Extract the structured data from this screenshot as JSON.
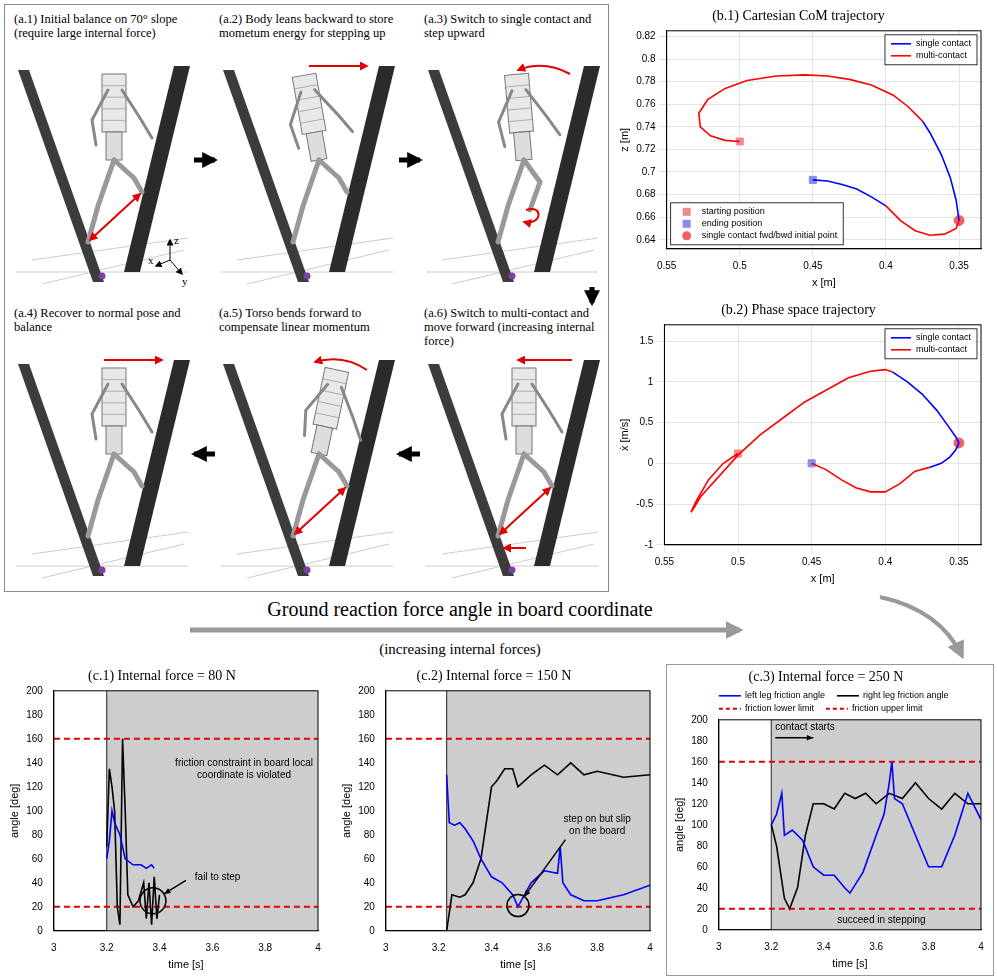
{
  "diagram": {
    "captions": [
      "(a.1) Initial balance on 70° slope (require large internal force)",
      "(a.2) Body leans backward to store mometum energy for stepping up",
      "(a.3) Switch to single contact and step upward",
      "(a.4) Recover to normal pose and balance",
      "(a.5) Torso bends forward to compensate linear momentum",
      "(a.6) Switch to multi-contact and move forward (increasing internal force)"
    ],
    "axis_labels": [
      "z",
      "x",
      "y"
    ]
  },
  "heading": {
    "title": "Ground reaction force angle in board coordinate",
    "subtitle": "(increasing internal forces)"
  },
  "chart_data": [
    {
      "type": "line",
      "title": "(b.1) Cartesian CoM trajectory",
      "x_label": "x [m]",
      "y_label": "z [m]",
      "xlim": [
        0.55,
        0.335
      ],
      "xticks": [
        0.55,
        0.5,
        0.45,
        0.4,
        0.35
      ],
      "ylim": [
        0.632,
        0.825
      ],
      "yticks": [
        0.64,
        0.66,
        0.68,
        0.7,
        0.72,
        0.74,
        0.76,
        0.78,
        0.8,
        0.82
      ],
      "grid": true,
      "legend": "top-right",
      "series": [
        {
          "name": "single contact",
          "color": "#0000ff",
          "x": [
            0.375,
            0.37,
            0.362,
            0.356,
            0.352,
            0.35,
            null,
            0.45,
            0.44,
            0.43,
            0.42,
            0.41,
            0.4
          ],
          "values": [
            0.745,
            0.735,
            0.715,
            0.695,
            0.675,
            0.657,
            null,
            0.693,
            0.692,
            0.689,
            0.685,
            0.678,
            0.67
          ]
        },
        {
          "name": "multi-contact",
          "color": "#ff0000",
          "x": [
            0.5,
            0.51,
            0.52,
            0.527,
            0.528,
            0.522,
            0.51,
            0.495,
            0.475,
            0.455,
            0.44,
            0.425,
            0.41,
            0.395,
            0.385,
            0.375,
            null,
            0.4,
            0.39,
            0.38,
            0.37,
            0.36,
            0.352,
            0.35
          ],
          "values": [
            0.727,
            0.728,
            0.732,
            0.74,
            0.752,
            0.764,
            0.774,
            0.781,
            0.785,
            0.786,
            0.785,
            0.782,
            0.777,
            0.768,
            0.758,
            0.745,
            null,
            0.67,
            0.657,
            0.648,
            0.644,
            0.645,
            0.65,
            0.657
          ]
        },
        {
          "name": "starting position",
          "type": "scatter",
          "marker": "square",
          "color": "#f08a8a",
          "x": [
            0.5
          ],
          "values": [
            0.727
          ]
        },
        {
          "name": "ending position",
          "type": "scatter",
          "marker": "square",
          "color": "#8a8af0",
          "x": [
            0.45
          ],
          "values": [
            0.693
          ]
        },
        {
          "name": "single contact fwd/bwd initial point",
          "type": "scatter",
          "marker": "circle",
          "color": "#f06060",
          "x": [
            0.35
          ],
          "values": [
            0.657
          ]
        }
      ]
    },
    {
      "type": "line",
      "title": "(b.2) Phase space trajectory",
      "x_label": "x [m]",
      "y_label": "ẋ [m/s]",
      "xlim": [
        0.55,
        0.335
      ],
      "xticks": [
        0.55,
        0.5,
        0.45,
        0.4,
        0.35
      ],
      "ylim": [
        -1,
        1.7
      ],
      "yticks": [
        -1,
        -0.5,
        0,
        0.5,
        1,
        1.5
      ],
      "grid": true,
      "legend": "top-right",
      "series": [
        {
          "name": "single contact",
          "color": "#0000ff",
          "x": [
            0.395,
            0.385,
            0.375,
            0.365,
            0.357,
            0.352,
            0.35,
            null,
            0.37,
            0.362,
            0.356,
            0.352,
            0.35
          ],
          "values": [
            1.12,
            1.0,
            0.85,
            0.65,
            0.45,
            0.32,
            0.25,
            null,
            -0.05,
            0.0,
            0.08,
            0.17,
            0.25
          ]
        },
        {
          "name": "multi-contact",
          "color": "#ff0000",
          "x": [
            0.5,
            0.51,
            0.52,
            0.528,
            0.532,
            0.53,
            0.525,
            0.515,
            0.5,
            0.485,
            0.47,
            0.455,
            0.44,
            0.425,
            0.41,
            0.4,
            0.395,
            null,
            0.45,
            0.44,
            0.43,
            0.42,
            0.41,
            0.4,
            0.39,
            0.38,
            0.37
          ],
          "values": [
            0.12,
            0.0,
            -0.2,
            -0.45,
            -0.6,
            -0.55,
            -0.4,
            -0.2,
            0.1,
            0.35,
            0.55,
            0.75,
            0.9,
            1.05,
            1.13,
            1.15,
            1.12,
            null,
            0.0,
            -0.08,
            -0.2,
            -0.3,
            -0.35,
            -0.35,
            -0.25,
            -0.1,
            -0.05
          ]
        },
        {
          "type": "scatter",
          "marker": "square",
          "color": "#f08a8a",
          "x": [
            0.5
          ],
          "values": [
            0.12
          ]
        },
        {
          "type": "scatter",
          "marker": "square",
          "color": "#8a8af0",
          "x": [
            0.45
          ],
          "values": [
            0.0
          ]
        },
        {
          "type": "scatter",
          "marker": "circle",
          "color": "#f06060",
          "x": [
            0.35
          ],
          "values": [
            0.25
          ]
        }
      ]
    },
    {
      "type": "line",
      "title": "(c.1) Internal force = 80 N",
      "x_label": "time [s]",
      "y_label": "angle [deg]",
      "xlim": [
        3,
        4
      ],
      "xticks": [
        3,
        3.2,
        3.4,
        3.6,
        3.8,
        4
      ],
      "ylim": [
        0,
        200
      ],
      "yticks": [
        0,
        20,
        40,
        60,
        80,
        100,
        120,
        140,
        160,
        180,
        200
      ],
      "grid": false,
      "contact_start": 3.2,
      "annotations": [
        "friction constraint in board local coordinate is violated",
        "fail to step"
      ],
      "series": [
        {
          "color": "#0000ff",
          "x": [
            3.2,
            3.21,
            3.22,
            3.23,
            3.25,
            3.27,
            3.3,
            3.33,
            3.35,
            3.37,
            3.38
          ],
          "values": [
            60,
            75,
            100,
            90,
            80,
            60,
            55,
            55,
            52,
            55,
            52
          ]
        },
        {
          "color": "#000000",
          "x": [
            3.2,
            3.21,
            3.22,
            3.23,
            3.24,
            3.25,
            3.26,
            3.27,
            3.28,
            3.3,
            3.32,
            3.34,
            3.35,
            3.36,
            3.37,
            3.38,
            3.39,
            3.4
          ],
          "values": [
            70,
            135,
            120,
            100,
            20,
            5,
            160,
            100,
            30,
            20,
            25,
            40,
            10,
            40,
            5,
            45,
            10,
            30
          ]
        },
        {
          "color": "#e00000",
          "line_style": "dashed",
          "x": [
            3,
            4
          ],
          "values": [
            20,
            20
          ]
        },
        {
          "color": "#e00000",
          "line_style": "dashed",
          "x": [
            3,
            4
          ],
          "values": [
            160,
            160
          ]
        }
      ]
    },
    {
      "type": "line",
      "title": "(c.2) Internal force = 150 N",
      "x_label": "time [s]",
      "y_label": "angle [deg]",
      "xlim": [
        3,
        4
      ],
      "xticks": [
        3,
        3.2,
        3.4,
        3.6,
        3.8,
        4
      ],
      "ylim": [
        0,
        200
      ],
      "yticks": [
        0,
        20,
        40,
        60,
        80,
        100,
        120,
        140,
        160,
        180,
        200
      ],
      "grid": false,
      "contact_start": 3.23,
      "annotations": [
        "step on but slip on the board"
      ],
      "series": [
        {
          "color": "#0000ff",
          "x": [
            3.23,
            3.24,
            3.26,
            3.28,
            3.3,
            3.33,
            3.36,
            3.4,
            3.44,
            3.48,
            3.5,
            3.52,
            3.55,
            3.6,
            3.65,
            3.66,
            3.67,
            3.7,
            3.75,
            3.8,
            3.9,
            4.0
          ],
          "values": [
            130,
            90,
            88,
            90,
            85,
            75,
            60,
            45,
            40,
            30,
            20,
            28,
            40,
            50,
            48,
            70,
            40,
            30,
            25,
            25,
            30,
            38
          ]
        },
        {
          "color": "#000000",
          "x": [
            3.23,
            3.25,
            3.28,
            3.3,
            3.33,
            3.36,
            3.38,
            3.4,
            3.42,
            3.45,
            3.48,
            3.5,
            3.55,
            3.6,
            3.65,
            3.7,
            3.75,
            3.8,
            3.9,
            4.0
          ],
          "values": [
            0,
            30,
            28,
            30,
            40,
            60,
            90,
            120,
            125,
            135,
            135,
            120,
            130,
            138,
            130,
            140,
            130,
            133,
            128,
            130
          ]
        },
        {
          "color": "#e00000",
          "line_style": "dashed",
          "x": [
            3,
            4
          ],
          "values": [
            20,
            20
          ]
        },
        {
          "color": "#e00000",
          "line_style": "dashed",
          "x": [
            3,
            4
          ],
          "values": [
            160,
            160
          ]
        }
      ]
    },
    {
      "type": "line",
      "title": "(c.3) Internal force = 250 N",
      "x_label": "time [s]",
      "y_label": "angle [deg]",
      "xlim": [
        3,
        4
      ],
      "xticks": [
        3,
        3.2,
        3.4,
        3.6,
        3.8,
        4
      ],
      "ylim": [
        0,
        200
      ],
      "yticks": [
        0,
        20,
        40,
        60,
        80,
        100,
        120,
        140,
        160,
        180,
        200
      ],
      "grid": false,
      "contact_start": 3.2,
      "legend": "top",
      "annotations": [
        "contact starts",
        "succeed in stepping"
      ],
      "series": [
        {
          "name": "left leg friction angle",
          "color": "#0000ff",
          "x": [
            3.2,
            3.22,
            3.24,
            3.25,
            3.28,
            3.32,
            3.36,
            3.4,
            3.44,
            3.48,
            3.5,
            3.55,
            3.6,
            3.63,
            3.65,
            3.66,
            3.67,
            3.7,
            3.75,
            3.8,
            3.85,
            3.9,
            3.95,
            4.0
          ],
          "values": [
            100,
            110,
            130,
            90,
            95,
            85,
            60,
            52,
            52,
            40,
            35,
            55,
            90,
            110,
            140,
            160,
            125,
            120,
            90,
            60,
            60,
            90,
            130,
            105
          ]
        },
        {
          "name": "right leg friction angle",
          "color": "#000000",
          "x": [
            3.2,
            3.22,
            3.25,
            3.27,
            3.3,
            3.33,
            3.36,
            3.4,
            3.44,
            3.48,
            3.52,
            3.56,
            3.6,
            3.65,
            3.7,
            3.75,
            3.8,
            3.85,
            3.9,
            3.95,
            4.0
          ],
          "values": [
            100,
            80,
            30,
            20,
            40,
            90,
            120,
            120,
            115,
            130,
            125,
            130,
            120,
            130,
            125,
            140,
            125,
            115,
            130,
            120,
            120
          ]
        },
        {
          "name": "friction lower limit",
          "color": "#e00000",
          "line_style": "dashed",
          "x": [
            3,
            4
          ],
          "values": [
            20,
            20
          ]
        },
        {
          "name": "friction upper limit",
          "color": "#e00000",
          "line_style": "dashed",
          "x": [
            3,
            4
          ],
          "values": [
            160,
            160
          ]
        }
      ]
    }
  ]
}
